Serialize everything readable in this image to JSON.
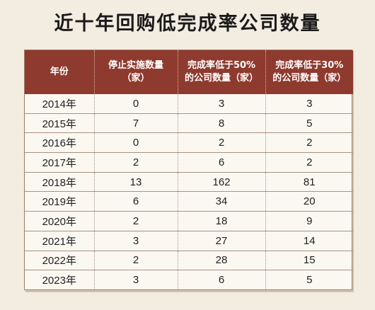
{
  "title": "近十年回购低完成率公司数量",
  "table": {
    "headers": [
      {
        "lines": [
          "年份"
        ]
      },
      {
        "lines": [
          "停止实施数量",
          "（家）"
        ]
      },
      {
        "lines": [
          "完成率低于50%",
          "的公司数量（家）"
        ]
      },
      {
        "lines": [
          "完成率低于30%",
          "的公司数量（家）"
        ]
      }
    ],
    "rows": [
      [
        "2014年",
        "0",
        "3",
        "3"
      ],
      [
        "2015年",
        "7",
        "8",
        "5"
      ],
      [
        "2016年",
        "0",
        "2",
        "2"
      ],
      [
        "2017年",
        "2",
        "6",
        "2"
      ],
      [
        "2018年",
        "13",
        "162",
        "81"
      ],
      [
        "2019年",
        "6",
        "34",
        "20"
      ],
      [
        "2020年",
        "2",
        "18",
        "9"
      ],
      [
        "2021年",
        "3",
        "27",
        "14"
      ],
      [
        "2022年",
        "2",
        "28",
        "15"
      ],
      [
        "2023年",
        "3",
        "6",
        "5"
      ]
    ]
  },
  "colors": {
    "header_bg": "#8f3a2e",
    "page_bg": "#f3ece1",
    "table_bg": "#fbf8f2"
  }
}
